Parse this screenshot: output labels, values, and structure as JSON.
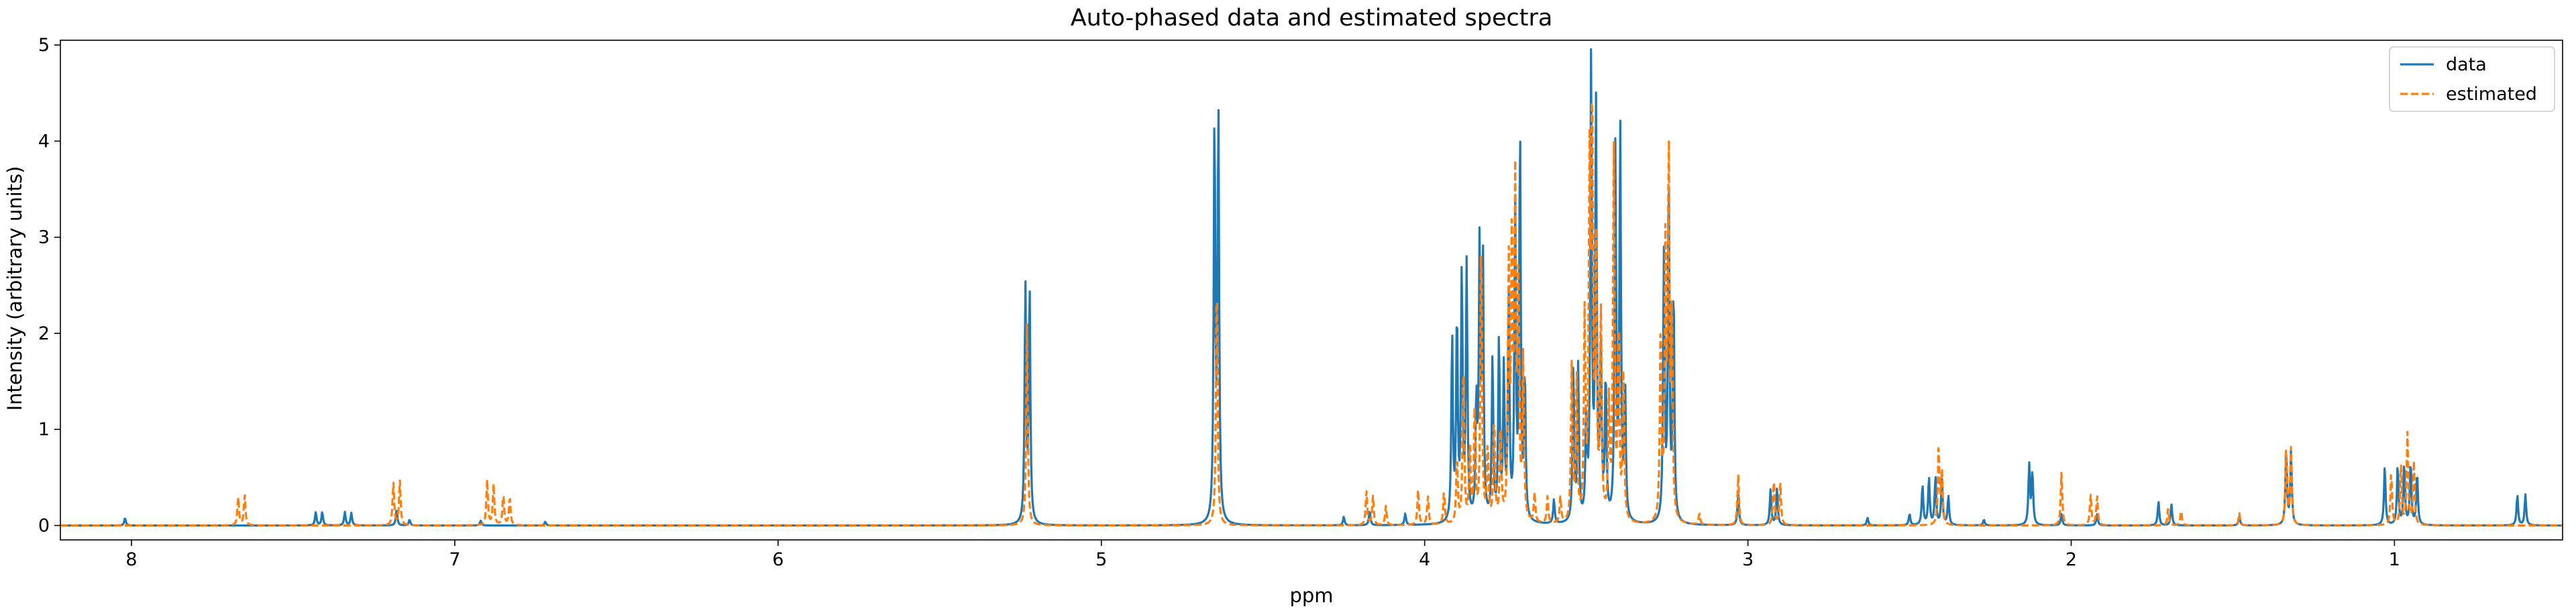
{
  "chart_data": {
    "type": "line",
    "title": "Auto-phased data and estimated spectra",
    "xlabel": "ppm",
    "ylabel": "Intensity (arbitrary units)",
    "xlim": [
      8.22,
      0.48
    ],
    "ylim": [
      -0.15,
      5.05
    ],
    "x_reversed": true,
    "xticks": [
      8,
      7,
      6,
      5,
      4,
      3,
      2,
      1
    ],
    "yticks": [
      0,
      1,
      2,
      3,
      4,
      5
    ],
    "grid": false,
    "legend_position": "top-right",
    "series": [
      {
        "name": "data",
        "color": "#1f77b4",
        "linestyle": "solid",
        "peaks": [
          {
            "ppm": 8.02,
            "height": 0.08
          },
          {
            "ppm": 7.43,
            "height": 0.14
          },
          {
            "ppm": 7.41,
            "height": 0.14
          },
          {
            "ppm": 7.34,
            "height": 0.14
          },
          {
            "ppm": 7.32,
            "height": 0.13
          },
          {
            "ppm": 7.18,
            "height": 0.16
          },
          {
            "ppm": 7.14,
            "height": 0.06
          },
          {
            "ppm": 6.92,
            "height": 0.05
          },
          {
            "ppm": 6.72,
            "height": 0.04
          },
          {
            "ppm": 5.235,
            "height": 2.48
          },
          {
            "ppm": 5.222,
            "height": 2.48
          },
          {
            "ppm": 4.65,
            "height": 4.22
          },
          {
            "ppm": 4.638,
            "height": 4.26
          },
          {
            "ppm": 4.25,
            "height": 0.09
          },
          {
            "ppm": 4.17,
            "height": 0.15
          },
          {
            "ppm": 4.06,
            "height": 0.12
          },
          {
            "ppm": 3.915,
            "height": 1.95
          },
          {
            "ppm": 3.9,
            "height": 2.15
          },
          {
            "ppm": 3.885,
            "height": 2.6
          },
          {
            "ppm": 3.87,
            "height": 2.65
          },
          {
            "ppm": 3.84,
            "height": 1.2
          },
          {
            "ppm": 3.83,
            "height": 2.8
          },
          {
            "ppm": 3.82,
            "height": 2.85
          },
          {
            "ppm": 3.79,
            "height": 1.7
          },
          {
            "ppm": 3.77,
            "height": 1.9
          },
          {
            "ppm": 3.755,
            "height": 1.55
          },
          {
            "ppm": 3.74,
            "height": 2.28
          },
          {
            "ppm": 3.72,
            "height": 3.2
          },
          {
            "ppm": 3.705,
            "height": 4.07
          },
          {
            "ppm": 3.69,
            "height": 1.5
          },
          {
            "ppm": 3.6,
            "height": 0.25
          },
          {
            "ppm": 3.54,
            "height": 1.63
          },
          {
            "ppm": 3.525,
            "height": 1.6
          },
          {
            "ppm": 3.5,
            "height": 1.05
          },
          {
            "ppm": 3.485,
            "height": 4.8
          },
          {
            "ppm": 3.47,
            "height": 4.25
          },
          {
            "ppm": 3.455,
            "height": 1.8
          },
          {
            "ppm": 3.44,
            "height": 1.5
          },
          {
            "ppm": 3.41,
            "height": 3.85
          },
          {
            "ppm": 3.395,
            "height": 4.07
          },
          {
            "ppm": 3.38,
            "height": 1.4
          },
          {
            "ppm": 3.26,
            "height": 2.77
          },
          {
            "ppm": 3.245,
            "height": 3.55
          },
          {
            "ppm": 3.23,
            "height": 2.45
          },
          {
            "ppm": 3.03,
            "height": 0.32
          },
          {
            "ppm": 2.93,
            "height": 0.37
          },
          {
            "ppm": 2.91,
            "height": 0.38
          },
          {
            "ppm": 2.63,
            "height": 0.08
          },
          {
            "ppm": 2.5,
            "height": 0.12
          },
          {
            "ppm": 2.46,
            "height": 0.42
          },
          {
            "ppm": 2.44,
            "height": 0.5
          },
          {
            "ppm": 2.42,
            "height": 0.5
          },
          {
            "ppm": 2.4,
            "height": 0.48
          },
          {
            "ppm": 2.38,
            "height": 0.3
          },
          {
            "ppm": 2.27,
            "height": 0.06
          },
          {
            "ppm": 2.13,
            "height": 0.62
          },
          {
            "ppm": 2.12,
            "height": 0.55
          },
          {
            "ppm": 2.03,
            "height": 0.12
          },
          {
            "ppm": 1.92,
            "height": 0.12
          },
          {
            "ppm": 1.73,
            "height": 0.25
          },
          {
            "ppm": 1.69,
            "height": 0.22
          },
          {
            "ppm": 1.48,
            "height": 0.1
          },
          {
            "ppm": 1.335,
            "height": 0.78
          },
          {
            "ppm": 1.32,
            "height": 0.76
          },
          {
            "ppm": 1.03,
            "height": 0.62
          },
          {
            "ppm": 0.99,
            "height": 0.63
          },
          {
            "ppm": 0.97,
            "height": 0.65
          },
          {
            "ppm": 0.95,
            "height": 0.66
          },
          {
            "ppm": 0.93,
            "height": 0.55
          },
          {
            "ppm": 0.62,
            "height": 0.32
          },
          {
            "ppm": 0.595,
            "height": 0.32
          }
        ]
      },
      {
        "name": "estimated",
        "color": "#ff7f0e",
        "linestyle": "dashed",
        "peaks": [
          {
            "ppm": 7.67,
            "height": 0.3
          },
          {
            "ppm": 7.65,
            "height": 0.32
          },
          {
            "ppm": 7.19,
            "height": 0.45
          },
          {
            "ppm": 7.17,
            "height": 0.47
          },
          {
            "ppm": 6.9,
            "height": 0.47
          },
          {
            "ppm": 6.88,
            "height": 0.42
          },
          {
            "ppm": 6.85,
            "height": 0.33
          },
          {
            "ppm": 6.83,
            "height": 0.3
          },
          {
            "ppm": 5.23,
            "height": 2.1
          },
          {
            "ppm": 4.643,
            "height": 2.67
          },
          {
            "ppm": 4.18,
            "height": 0.35
          },
          {
            "ppm": 4.16,
            "height": 0.3
          },
          {
            "ppm": 4.12,
            "height": 0.2
          },
          {
            "ppm": 4.02,
            "height": 0.37
          },
          {
            "ppm": 3.99,
            "height": 0.3
          },
          {
            "ppm": 3.94,
            "height": 0.35
          },
          {
            "ppm": 3.9,
            "height": 0.7
          },
          {
            "ppm": 3.88,
            "height": 1.7
          },
          {
            "ppm": 3.86,
            "height": 0.8
          },
          {
            "ppm": 3.845,
            "height": 1.2
          },
          {
            "ppm": 3.825,
            "height": 3.0
          },
          {
            "ppm": 3.805,
            "height": 0.8
          },
          {
            "ppm": 3.785,
            "height": 1.1
          },
          {
            "ppm": 3.765,
            "height": 1.0
          },
          {
            "ppm": 3.74,
            "height": 2.6
          },
          {
            "ppm": 3.73,
            "height": 2.9
          },
          {
            "ppm": 3.72,
            "height": 3.35
          },
          {
            "ppm": 3.71,
            "height": 2.5
          },
          {
            "ppm": 3.695,
            "height": 1.7
          },
          {
            "ppm": 3.66,
            "height": 0.3
          },
          {
            "ppm": 3.62,
            "height": 0.28
          },
          {
            "ppm": 3.58,
            "height": 0.27
          },
          {
            "ppm": 3.545,
            "height": 1.62
          },
          {
            "ppm": 3.53,
            "height": 1.5
          },
          {
            "ppm": 3.505,
            "height": 2.1
          },
          {
            "ppm": 3.49,
            "height": 3.5
          },
          {
            "ppm": 3.482,
            "height": 4.3
          },
          {
            "ppm": 3.47,
            "height": 2.7
          },
          {
            "ppm": 3.455,
            "height": 2.2
          },
          {
            "ppm": 3.43,
            "height": 1.2
          },
          {
            "ppm": 3.415,
            "height": 3.92
          },
          {
            "ppm": 3.4,
            "height": 2.0
          },
          {
            "ppm": 3.385,
            "height": 1.6
          },
          {
            "ppm": 3.27,
            "height": 2.0
          },
          {
            "ppm": 3.255,
            "height": 2.8
          },
          {
            "ppm": 3.245,
            "height": 3.87
          },
          {
            "ppm": 3.235,
            "height": 2.0
          },
          {
            "ppm": 3.15,
            "height": 0.12
          },
          {
            "ppm": 3.03,
            "height": 0.52
          },
          {
            "ppm": 2.92,
            "height": 0.47
          },
          {
            "ppm": 2.9,
            "height": 0.45
          },
          {
            "ppm": 2.41,
            "height": 0.8
          },
          {
            "ppm": 2.4,
            "height": 0.55
          },
          {
            "ppm": 2.03,
            "height": 0.55
          },
          {
            "ppm": 1.94,
            "height": 0.32
          },
          {
            "ppm": 1.92,
            "height": 0.3
          },
          {
            "ppm": 1.7,
            "height": 0.18
          },
          {
            "ppm": 1.66,
            "height": 0.16
          },
          {
            "ppm": 1.48,
            "height": 0.13
          },
          {
            "ppm": 1.335,
            "height": 0.82
          },
          {
            "ppm": 1.32,
            "height": 0.8
          },
          {
            "ppm": 1.01,
            "height": 0.55
          },
          {
            "ppm": 0.98,
            "height": 0.6
          },
          {
            "ppm": 0.96,
            "height": 0.95
          },
          {
            "ppm": 0.94,
            "height": 0.65
          }
        ]
      }
    ]
  }
}
